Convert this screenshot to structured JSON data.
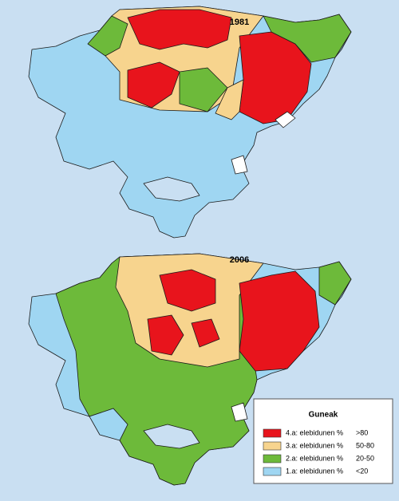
{
  "maps": [
    {
      "title": "1981"
    },
    {
      "title": "2006"
    }
  ],
  "legend": {
    "title": "Guneak",
    "items": [
      {
        "label": "4.a: elebidunen %",
        "range": ">80",
        "color": "#e8141c"
      },
      {
        "label": "3.a: elebidunen %",
        "range": "50-80",
        "color": "#f7d48e"
      },
      {
        "label": "2.a: elebidunen %",
        "range": "20-50",
        "color": "#6dba3a"
      },
      {
        "label": "1.a: elebidunen %",
        "range": "<20",
        "color": "#9fd6f2"
      }
    ]
  }
}
